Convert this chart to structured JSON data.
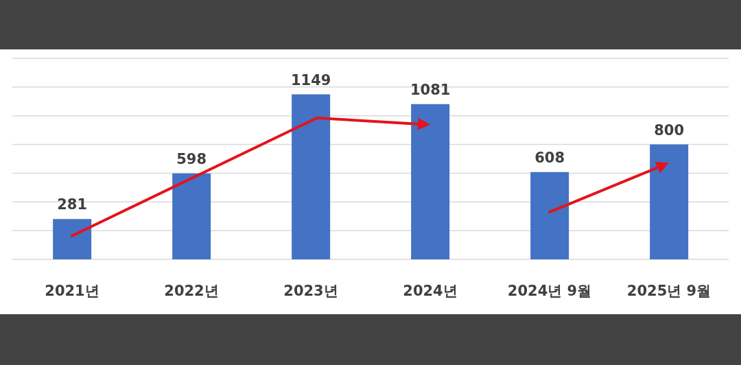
{
  "chart_data": {
    "type": "bar",
    "categories": [
      "2021년",
      "2022년",
      "2023년",
      "2024년",
      "2024년 9월",
      "2025년 9월"
    ],
    "values": [
      281,
      598,
      1149,
      1081,
      608,
      800
    ],
    "color": "#4472c4",
    "ylim": [
      0,
      1400
    ],
    "yticks": [
      {
        "value": 0,
        "label": null
      },
      {
        "value": 200,
        "label": null
      },
      {
        "value": 400,
        "label": null
      },
      {
        "value": 600,
        "label": null
      },
      {
        "value": 800,
        "label": null
      },
      {
        "value": 1000,
        "label": null
      },
      {
        "value": 1200,
        "label": null
      },
      {
        "value": 1400,
        "label": null
      }
    ],
    "grid": "y",
    "tick_labels": "x",
    "data_labels": true
  }
}
